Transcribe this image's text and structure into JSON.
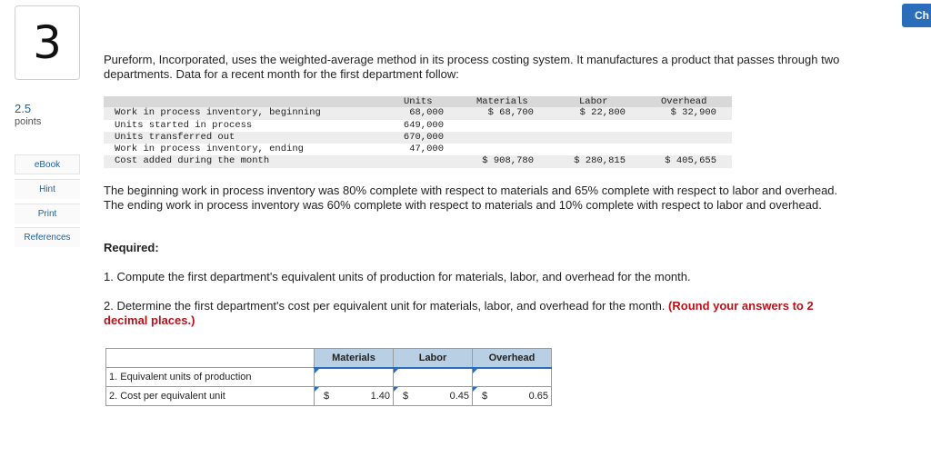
{
  "question": {
    "number": "3",
    "points_value": "2.5",
    "points_label": "points"
  },
  "sidebar": {
    "items": [
      {
        "label": "eBook"
      },
      {
        "label": "Hint"
      },
      {
        "label": "Print"
      },
      {
        "label": "References"
      }
    ]
  },
  "corner_button": {
    "label": "Ch"
  },
  "intro": "Pureform, Incorporated, uses the weighted-average method in its process costing system. It manufactures a product that passes through two departments. Data for a recent month for the first department follow:",
  "data_table": {
    "headers": {
      "units": "Units",
      "materials": "Materials",
      "labor": "Labor",
      "overhead": "Overhead"
    },
    "rows": [
      {
        "label": "Work in process inventory, beginning",
        "units": "68,000",
        "materials": "$ 68,700",
        "labor": "$ 22,800",
        "overhead": "$ 32,900"
      },
      {
        "label": "Units started in process",
        "units": "649,000",
        "materials": "",
        "labor": "",
        "overhead": ""
      },
      {
        "label": "Units transferred out",
        "units": "670,000",
        "materials": "",
        "labor": "",
        "overhead": ""
      },
      {
        "label": "Work in process inventory, ending",
        "units": "47,000",
        "materials": "",
        "labor": "",
        "overhead": ""
      },
      {
        "label": "Cost added during the month",
        "units": "",
        "materials": "$ 908,780",
        "labor": "$ 280,815",
        "overhead": "$ 405,655"
      }
    ]
  },
  "paragraph2": "The beginning work in process inventory was 80% complete with respect to materials and 65% complete with respect to labor and overhead. The ending work in process inventory was 60% complete with respect to materials and 10% complete with respect to labor and overhead.",
  "required_label": "Required:",
  "req1": "1. Compute the first department's equivalent units of production for materials, labor, and overhead for the month.",
  "req2_text": "2. Determine the first department's cost per equivalent unit for materials, labor, and overhead for the month.",
  "req2_note": "(Round your answers to 2 decimal places.)",
  "answer_table": {
    "headers": {
      "materials": "Materials",
      "labor": "Labor",
      "overhead": "Overhead"
    },
    "row1": {
      "label": "1. Equivalent units of production",
      "materials": "",
      "labor": "",
      "overhead": ""
    },
    "row2": {
      "label": "2. Cost per equivalent unit",
      "currency": "$",
      "materials": "1.40",
      "labor": "0.45",
      "overhead": "0.65"
    }
  }
}
